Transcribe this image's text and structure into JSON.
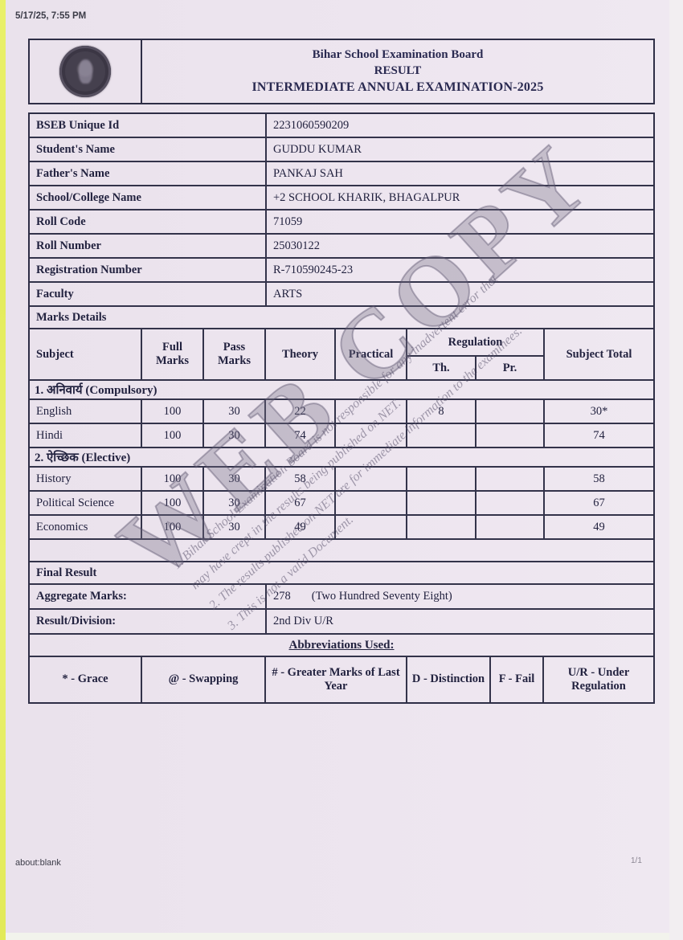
{
  "page": {
    "timestamp": "5/17/25, 7:55 PM",
    "footer_left": "about:blank",
    "footer_right": "1/1"
  },
  "header": {
    "board": "Bihar School Examination Board",
    "result": "RESULT",
    "exam": "INTERMEDIATE ANNUAL EXAMINATION-2025"
  },
  "info": {
    "rows": [
      {
        "label": "BSEB Unique Id",
        "value": "2231060590209"
      },
      {
        "label": "Student's Name",
        "value": "GUDDU KUMAR"
      },
      {
        "label": "Father's Name",
        "value": "PANKAJ SAH"
      },
      {
        "label": "School/College Name",
        "value": "+2 SCHOOL KHARIK, BHAGALPUR"
      },
      {
        "label": "Roll Code",
        "value": "71059"
      },
      {
        "label": "Roll Number",
        "value": "25030122"
      },
      {
        "label": "Registration Number",
        "value": "R-710590245-23"
      },
      {
        "label": "Faculty",
        "value": "ARTS"
      }
    ],
    "marks_details_label": "Marks Details"
  },
  "marks_table": {
    "headers": {
      "subject": "Subject",
      "full_marks": "Full Marks",
      "pass_marks": "Pass Marks",
      "theory": "Theory",
      "practical": "Practical",
      "regulation": "Regulation",
      "regulation_th": "Th.",
      "regulation_pr": "Pr.",
      "subject_total": "Subject Total"
    },
    "sections": [
      {
        "title": "1. अनिवार्य (Compulsory)",
        "rows": [
          {
            "subject": "English",
            "full_marks": "100",
            "pass_marks": "30",
            "theory": "22",
            "practical": "",
            "regulation_th": "8",
            "regulation_pr": "",
            "subject_total": "30*"
          },
          {
            "subject": "Hindi",
            "full_marks": "100",
            "pass_marks": "30",
            "theory": "74",
            "practical": "",
            "regulation_th": "",
            "regulation_pr": "",
            "subject_total": "74"
          }
        ]
      },
      {
        "title": "2. ऐच्छिक (Elective)",
        "rows": [
          {
            "subject": "History",
            "full_marks": "100",
            "pass_marks": "30",
            "theory": "58",
            "practical": "",
            "regulation_th": "",
            "regulation_pr": "",
            "subject_total": "58"
          },
          {
            "subject": "Political Science",
            "full_marks": "100",
            "pass_marks": "30",
            "theory": "67",
            "practical": "",
            "regulation_th": "",
            "regulation_pr": "",
            "subject_total": "67"
          },
          {
            "subject": "Economics",
            "full_marks": "100",
            "pass_marks": "30",
            "theory": "49",
            "practical": "",
            "regulation_th": "",
            "regulation_pr": "",
            "subject_total": "49"
          }
        ]
      }
    ]
  },
  "final": {
    "final_result_label": "Final Result",
    "aggregate_label": "Aggregate Marks:",
    "aggregate_value": "278",
    "aggregate_words": "(Two Hundred Seventy Eight)",
    "division_label": "Result/Division:",
    "division_value": "2nd Div U/R"
  },
  "abbreviations": {
    "title": "Abbreviations Used:",
    "items": [
      "* - Grace",
      "@ - Swapping",
      "# - Greater Marks of Last Year",
      "D - Distinction",
      "F - Fail",
      "U/R - Under Regulation"
    ]
  },
  "watermark": {
    "big": "WEB COPY",
    "lines": [
      "1. Bihar School Examination Board is not responsible for any inadvertent error that",
      "may have crept in the results being published on NET.",
      "2. The results published on NET are for immediate information to the examinees.",
      "3. This is not a valid Document."
    ]
  },
  "colors": {
    "paper": "#ece4ee",
    "ink": "#22223f",
    "border": "#33334a",
    "title": "#292950",
    "edge_strip": "#e6ee62",
    "watermark": "#766e84"
  }
}
